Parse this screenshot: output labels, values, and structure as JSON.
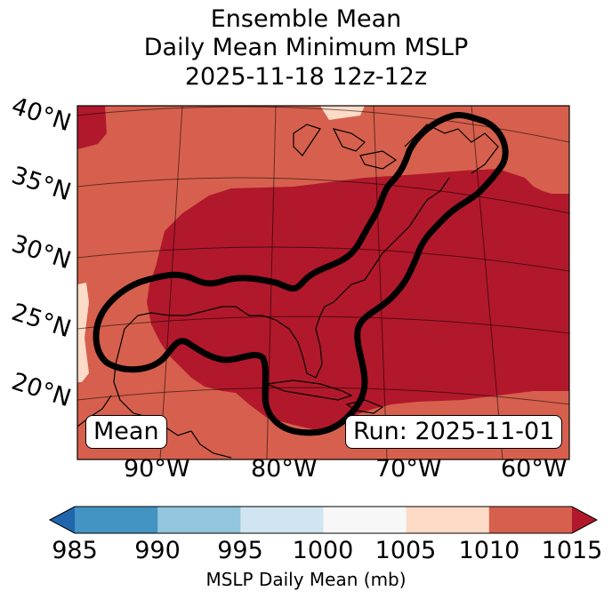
{
  "title_lines": [
    "Ensemble Mean",
    "Daily Mean Minimum MSLP",
    "2025-11-18 12z-12z"
  ],
  "lat_labels": [
    "40°N",
    "35°N",
    "30°N",
    "25°N",
    "20°N"
  ],
  "lon_labels": [
    "90°W",
    "80°W",
    "70°W",
    "60°W"
  ],
  "mean_label": "Mean",
  "run_label": "Run: 2025-11-01",
  "colorbar": {
    "label": "MSLP Daily Mean (mb)",
    "ticks": [
      "985",
      "990",
      "995",
      "1000",
      "1005",
      "1010",
      "1015"
    ],
    "colors": [
      "#2166ac",
      "#4393c3",
      "#92c5de",
      "#d1e5f0",
      "#f7f7f7",
      "#fddbc7",
      "#d6604d",
      "#b2182b"
    ]
  },
  "map": {
    "low_pressure_color": "#b2182b",
    "mid_pressure_color": "#d6604d",
    "high_pressure_color": "#fddbc7",
    "contour_color": "#000000"
  }
}
